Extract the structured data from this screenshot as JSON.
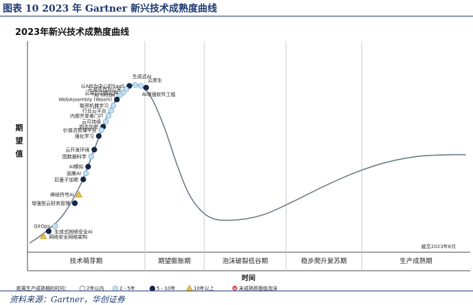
{
  "figure_label": "图表 10   2023 年 Gartner 新兴技术成熟度曲线",
  "source": "资料来源：Gartner，华创证券",
  "chart_data": {
    "type": "line",
    "title": "2023年新兴技术成熟度曲线",
    "ylabel": "期望值",
    "xlabel": "时间",
    "ylim": [
      0,
      100
    ],
    "xlim": [
      0,
      100
    ],
    "phases": [
      "技术萌芽期",
      "期望膨胀期",
      "泡沫破裂低谷期",
      "稳步爬升复苏期",
      "生产成熟期"
    ],
    "phase_boundaries": [
      26.5,
      39.9,
      58.4,
      75.5
    ],
    "date_note": "截至2023年8月",
    "curve": [
      {
        "x": 0.5,
        "y": 0.5
      },
      {
        "x": 4,
        "y": 7
      },
      {
        "x": 8,
        "y": 17
      },
      {
        "x": 12,
        "y": 35
      },
      {
        "x": 15,
        "y": 55
      },
      {
        "x": 18,
        "y": 75
      },
      {
        "x": 20.5,
        "y": 87
      },
      {
        "x": 23,
        "y": 93
      },
      {
        "x": 25.5,
        "y": 93
      },
      {
        "x": 28,
        "y": 86
      },
      {
        "x": 31,
        "y": 68
      },
      {
        "x": 34,
        "y": 45
      },
      {
        "x": 37,
        "y": 27
      },
      {
        "x": 41,
        "y": 16
      },
      {
        "x": 46,
        "y": 14
      },
      {
        "x": 53,
        "y": 17
      },
      {
        "x": 60,
        "y": 25
      },
      {
        "x": 67,
        "y": 34
      },
      {
        "x": 74,
        "y": 42
      },
      {
        "x": 81,
        "y": 48
      },
      {
        "x": 88,
        "y": 51.5
      },
      {
        "x": 95,
        "y": 52.5
      },
      {
        "x": 99,
        "y": 52.5
      }
    ],
    "technologies": [
      {
        "name": "以API为中心的SaaS",
        "x": 23,
        "y": 93,
        "years": "5 - 10年"
      },
      {
        "name": "开源项目办公室",
        "x": 22.3,
        "y": 91,
        "years": "2 - 5年"
      },
      {
        "name": "云端向边缘延伸",
        "x": 21.6,
        "y": 89,
        "years": "2 - 5年"
      },
      {
        "name": "AI TRiSM",
        "x": 20.9,
        "y": 87.5,
        "years": "2 - 5年"
      },
      {
        "name": "WebAssembly (Wasm)",
        "x": 20.2,
        "y": 85,
        "years": "5 - 10年"
      },
      {
        "name": "联邦机器学习",
        "x": 19.4,
        "y": 81.5,
        "years": "2 - 5年"
      },
      {
        "name": "行业云平台",
        "x": 18.9,
        "y": 78.5,
        "years": "2 - 5年"
      },
      {
        "name": "内部开发者门户",
        "x": 18.3,
        "y": 75.5,
        "years": "2 - 5年"
      },
      {
        "name": "云可持续",
        "x": 17.7,
        "y": 72,
        "years": "2 - 5年"
      },
      {
        "name": "同态加密",
        "x": 17.1,
        "y": 69,
        "years": "5 - 10年"
      },
      {
        "name": "价值流管理平台",
        "x": 16.7,
        "y": 67,
        "years": "2 - 5年"
      },
      {
        "name": "强化学习",
        "x": 16.1,
        "y": 63.5,
        "years": "5 - 10年"
      },
      {
        "name": "云开发环境",
        "x": 15.1,
        "y": 55.5,
        "years": "5 - 10年"
      },
      {
        "name": "图数据科学",
        "x": 14.4,
        "y": 51.5,
        "years": "2 - 5年"
      },
      {
        "name": "AI模拟",
        "x": 13.7,
        "y": 45.5,
        "years": "5 - 10年"
      },
      {
        "name": "因果AI",
        "x": 13.2,
        "y": 41.5,
        "years": "2 - 5年"
      },
      {
        "name": "后量子加密",
        "x": 12.6,
        "y": 38,
        "years": "5 - 10年"
      },
      {
        "name": "神经符号AI",
        "x": 11.6,
        "y": 29,
        "years": "10年以上"
      },
      {
        "name": "增强型云财务管理",
        "x": 10.7,
        "y": 24,
        "years": "5 - 10年"
      },
      {
        "name": "GitOps",
        "x": 6.2,
        "y": 10.5,
        "years": "2 - 5年"
      },
      {
        "name": "生成式网络安全AI",
        "x": 4.8,
        "y": 7.5,
        "years": "5 - 10年"
      },
      {
        "name": "网络安全网格架构",
        "x": 3.6,
        "y": 4.5,
        "years": "10年以上"
      },
      {
        "name": "生成式AI",
        "x": 24.3,
        "y": 93.5,
        "years": "2 - 5年"
      },
      {
        "name": "云原生",
        "x": 25.6,
        "y": 93,
        "years": "2 - 5年"
      },
      {
        "name": "AI增强软件工程",
        "x": 26.8,
        "y": 92,
        "years": "5 - 10年"
      }
    ],
    "legend": {
      "title": "距离生产成熟期的时间：",
      "items": [
        {
          "label": "2年以内",
          "marker": "open-circle"
        },
        {
          "label": "2 - 5年",
          "marker": "light-blue-circle"
        },
        {
          "label": "5 - 10年",
          "marker": "dark-navy-circle"
        },
        {
          "label": "10年以上",
          "marker": "yellow-triangle"
        },
        {
          "label": "未成熟即面临泡沫",
          "marker": "red-x-circle"
        }
      ],
      "placement": "bottom-left"
    },
    "colors": {
      "curve": "#6a7a8a",
      "light_blue": "#bfe0f2",
      "navy": "#14284b",
      "yellow": "#e8c04a",
      "red": "#d9433a",
      "axis": "#444444",
      "grid": "#cccccc"
    }
  }
}
